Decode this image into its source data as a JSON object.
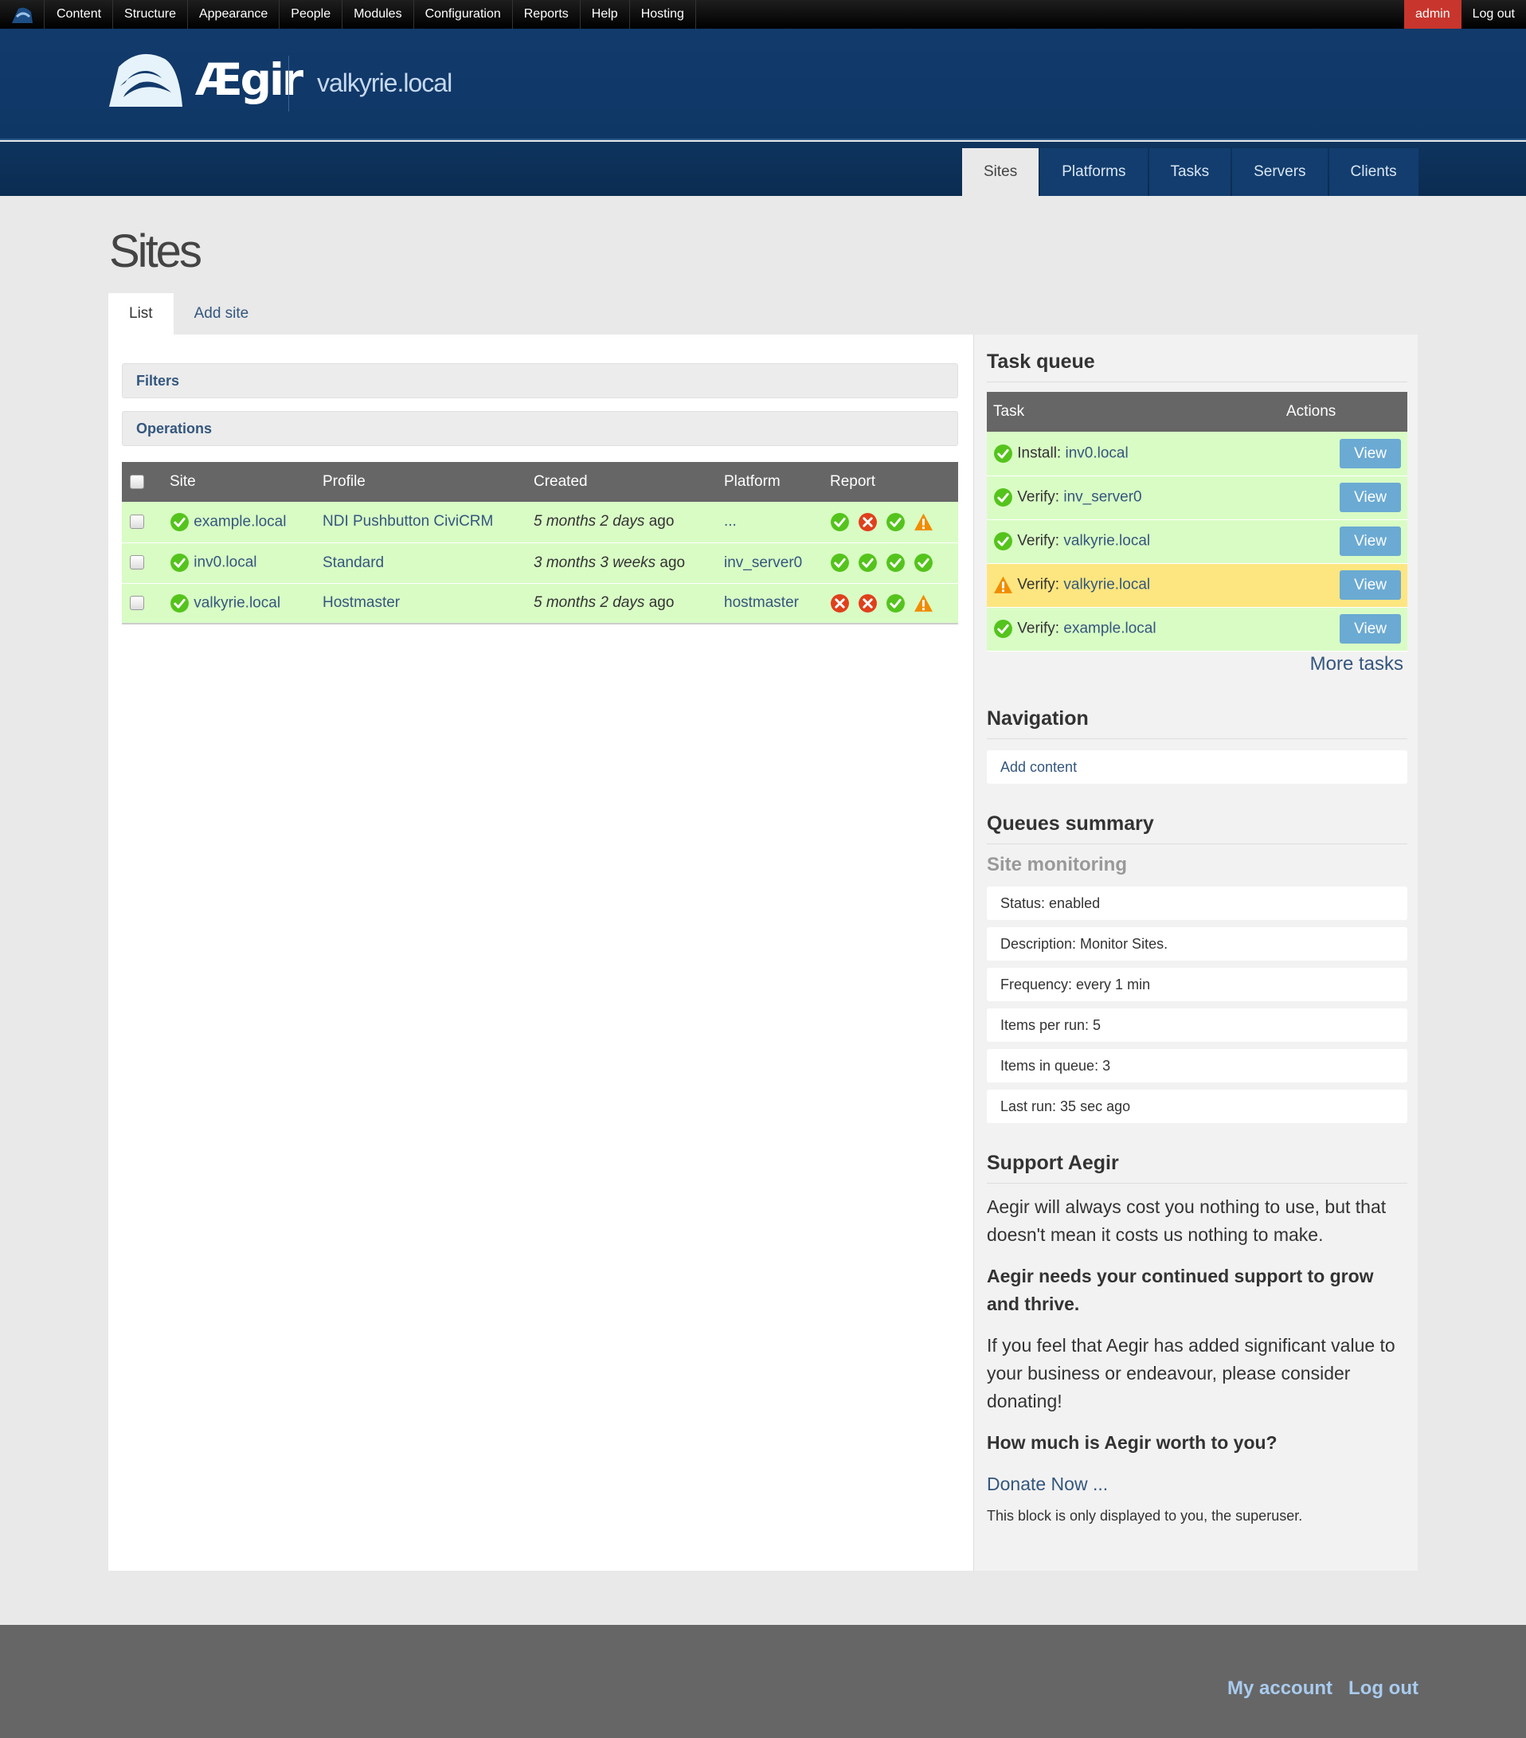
{
  "toolbar": {
    "items": [
      "Content",
      "Structure",
      "Appearance",
      "People",
      "Modules",
      "Configuration",
      "Reports",
      "Help",
      "Hosting"
    ],
    "user": "admin",
    "logout": "Log out"
  },
  "header": {
    "logo_text": "Ægir",
    "site_name": "valkyrie.local"
  },
  "nav": {
    "tabs": [
      "Sites",
      "Platforms",
      "Tasks",
      "Servers",
      "Clients"
    ],
    "active": "Sites"
  },
  "page": {
    "title": "Sites",
    "tabs": [
      "List",
      "Add site"
    ],
    "filters_label": "Filters",
    "operations_label": "Operations"
  },
  "sites_table": {
    "headers": [
      "Site",
      "Profile",
      "Created",
      "Platform",
      "Report"
    ],
    "rows": [
      {
        "site": "example.local",
        "profile": "NDI Pushbutton CiviCRM",
        "created_em": "5 months 2 days",
        "created_suffix": " ago",
        "platform": "...",
        "status": "ok",
        "report": [
          "ok",
          "error",
          "ok",
          "warning"
        ]
      },
      {
        "site": "inv0.local",
        "profile": "Standard",
        "created_em": "3 months 3 weeks",
        "created_suffix": " ago",
        "platform": "inv_server0",
        "status": "ok",
        "report": [
          "ok",
          "ok",
          "ok",
          "ok"
        ]
      },
      {
        "site": "valkyrie.local",
        "profile": "Hostmaster",
        "created_em": "5 months 2 days",
        "created_suffix": " ago",
        "platform": "hostmaster",
        "status": "ok",
        "report": [
          "error",
          "error",
          "ok",
          "warning"
        ]
      }
    ]
  },
  "task_queue": {
    "title": "Task queue",
    "headers": [
      "Task",
      "Actions"
    ],
    "rows": [
      {
        "status": "ok",
        "type": "Install:",
        "target": "inv0.local",
        "action": "View"
      },
      {
        "status": "ok",
        "type": "Verify:",
        "target": "inv_server0",
        "action": "View"
      },
      {
        "status": "ok",
        "type": "Verify:",
        "target": "valkyrie.local",
        "action": "View"
      },
      {
        "status": "warning",
        "type": "Verify:",
        "target": "valkyrie.local",
        "action": "View"
      },
      {
        "status": "ok",
        "type": "Verify:",
        "target": "example.local",
        "action": "View"
      }
    ],
    "more": "More tasks"
  },
  "navigation": {
    "title": "Navigation",
    "add_content": "Add content"
  },
  "queues": {
    "title": "Queues summary",
    "subtitle": "Site monitoring",
    "items": [
      "Status: enabled",
      "Description: Monitor Sites.",
      "Frequency: every 1 min",
      "Items per run: 5",
      "Items in queue: 3",
      "Last run: 35 sec ago"
    ]
  },
  "support": {
    "title": "Support Aegir",
    "p1": "Aegir will always cost you nothing to use, but that doesn't mean it costs us nothing to make.",
    "p2": "Aegir needs your continued support to grow and thrive.",
    "p3": "If you feel that Aegir has added significant value to your business or endeavour, please consider donating!",
    "p4": "How much is Aegir worth to you?",
    "donate": "Donate Now ...",
    "note": "This block is only displayed to you, the superuser."
  },
  "footer": {
    "links": [
      "My account",
      "Log out"
    ]
  },
  "colors": {
    "ok": "#54c41c",
    "error": "#e0401c",
    "warning": "#f08c00",
    "row_ok": "#d9fcc5",
    "row_warn": "#fde680",
    "header_blue": "#123a6b"
  }
}
